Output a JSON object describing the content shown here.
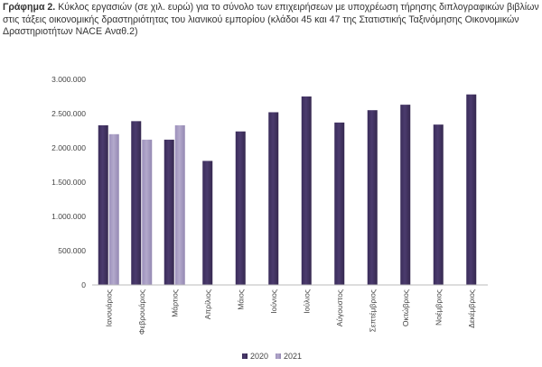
{
  "caption": {
    "label": "Γράφημα 2.",
    "text": "Κύκλος εργασιών (σε χιλ. ευρώ) για το σύνολο των επιχειρήσεων με υποχρέωση τήρησης διπλογραφικών βιβλίων στις τάξεις οικονομικής δραστηριότητας του λιανικού εμπορίου (κλάδοι 45 και 47 της Στατιστικής Ταξινόμησης Οικονομικών Δραστηριοτήτων NACE Αναθ.2)"
  },
  "chart_data": {
    "type": "bar",
    "categories": [
      "Ιανουάριος",
      "Φεβρουάριος",
      "Μάρτιος",
      "Απρίλιος",
      "Μάιος",
      "Ιούνιος",
      "Ιούλιος",
      "Αύγουστος",
      "Σεπτέμβριος",
      "Οκτώβριος",
      "Νοέμβριος",
      "Δεκέμβριος"
    ],
    "series": [
      {
        "name": "2020",
        "color": "#4b3b6e",
        "values": [
          2330000,
          2390000,
          2120000,
          1810000,
          2240000,
          2520000,
          2750000,
          2370000,
          2550000,
          2630000,
          2340000,
          2780000
        ]
      },
      {
        "name": "2021",
        "color": "#b3a9cc",
        "values": [
          2200000,
          2120000,
          2330000,
          null,
          null,
          null,
          null,
          null,
          null,
          null,
          null,
          null
        ]
      }
    ],
    "ylim": [
      0,
      3000000
    ],
    "yticks": [
      0,
      500000,
      1000000,
      1500000,
      2000000,
      2500000,
      3000000
    ],
    "ytick_labels": [
      "0",
      "500.000",
      "1.000.000",
      "1.500.000",
      "2.000.000",
      "2.500.000",
      "3.000.000"
    ],
    "grid": false,
    "legend": "bottom-center"
  }
}
